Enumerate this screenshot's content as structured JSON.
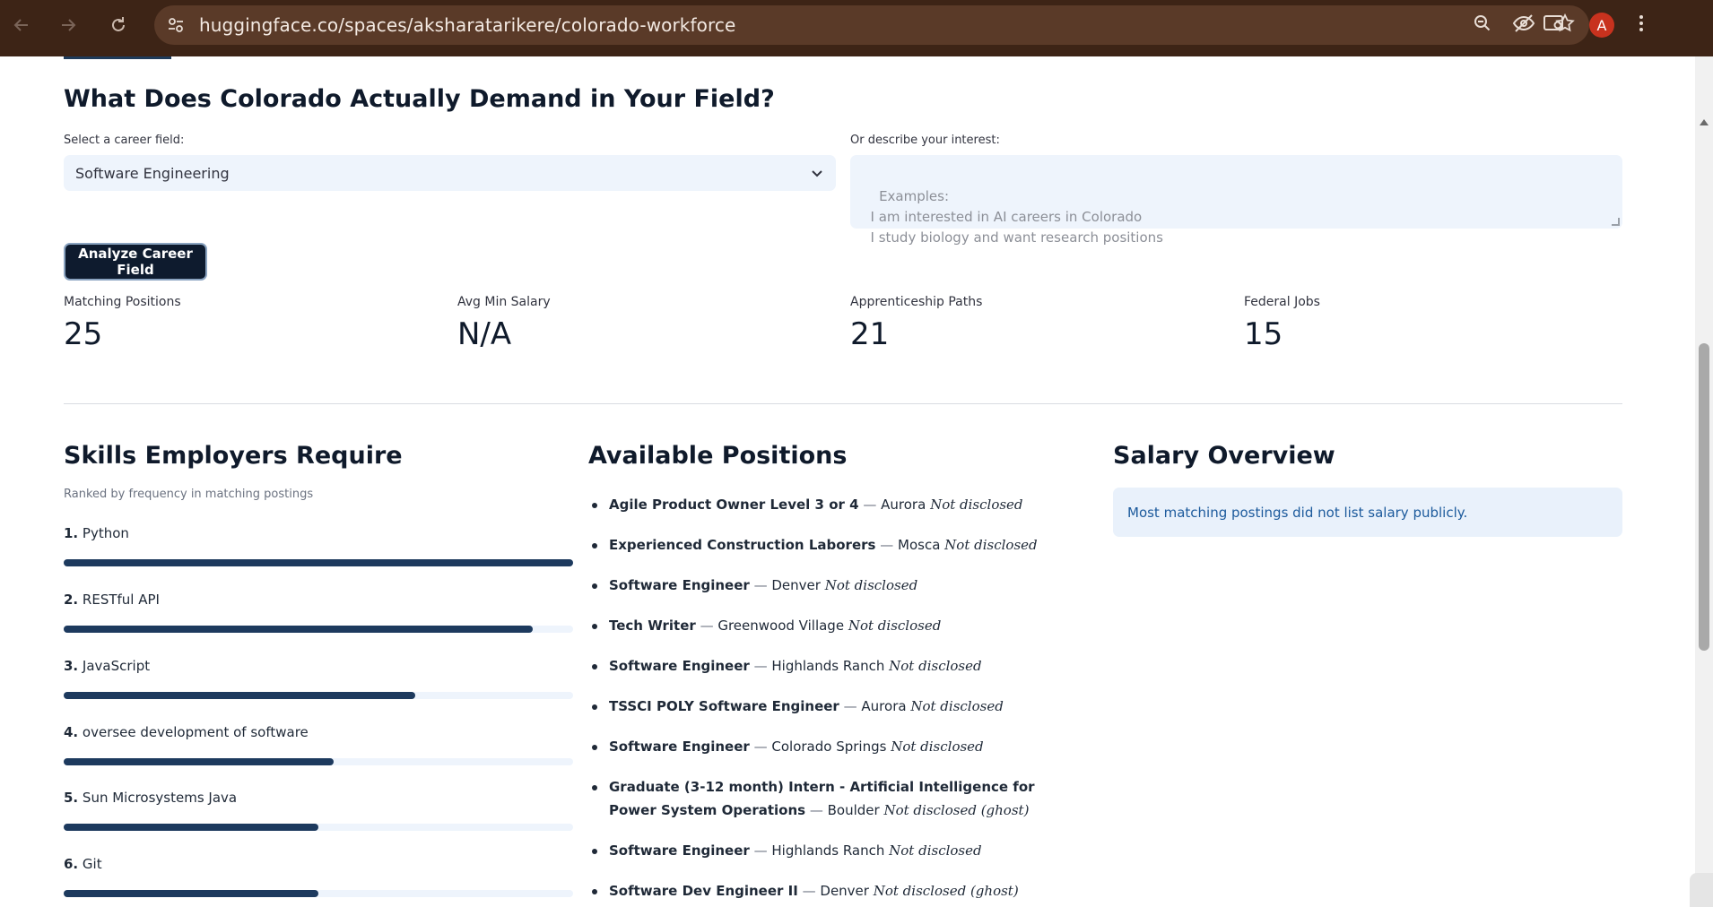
{
  "browser": {
    "url": "huggingface.co/spaces/aksharatarikere/colorado-workforce",
    "profile_initial": "A",
    "icons": [
      "back-icon",
      "forward-icon",
      "reload-icon",
      "site-settings-icon",
      "zoom-icon",
      "eye-off-icon",
      "star-icon",
      "tab-search-icon",
      "menu-icon"
    ]
  },
  "page": {
    "heading": "What Does Colorado Actually Demand in Your Field?",
    "select_label": "Select a career field:",
    "select_value": "Software Engineering",
    "textarea_label": "Or describe your interest:",
    "textarea_placeholder": "Examples:\n  I am interested in AI careers in Colorado\n  I study biology and want research positions",
    "analyze_button": "Analyze Career Field"
  },
  "metrics": [
    {
      "label": "Matching Positions",
      "value": "25"
    },
    {
      "label": "Avg Min Salary",
      "value": "N/A"
    },
    {
      "label": "Apprenticeship Paths",
      "value": "21"
    },
    {
      "label": "Federal Jobs",
      "value": "15"
    }
  ],
  "skills": {
    "title": "Skills Employers Require",
    "caption": "Ranked by frequency in matching postings",
    "items": [
      {
        "rank": "1.",
        "name": "Python",
        "level": 1.0
      },
      {
        "rank": "2.",
        "name": "RESTful API",
        "level": 0.92
      },
      {
        "rank": "3.",
        "name": "JavaScript",
        "level": 0.69
      },
      {
        "rank": "4.",
        "name": "oversee development of software",
        "level": 0.53
      },
      {
        "rank": "5.",
        "name": "Sun Microsystems Java",
        "level": 0.5
      },
      {
        "rank": "6.",
        "name": "Git",
        "level": 0.5
      }
    ]
  },
  "positions": {
    "title": "Available Positions",
    "items": [
      {
        "title": "Agile Product Owner Level 3 or 4",
        "sep": "—",
        "location": "Aurora",
        "salary": "Not disclosed"
      },
      {
        "title": "Experienced Construction Laborers",
        "sep": "—",
        "location": "Mosca",
        "salary": "Not disclosed"
      },
      {
        "title": "Software Engineer",
        "sep": "—",
        "location": "Denver",
        "salary": "Not disclosed"
      },
      {
        "title": "Tech Writer",
        "sep": "—",
        "location": "Greenwood Village",
        "salary": "Not disclosed"
      },
      {
        "title": "Software Engineer",
        "sep": "—",
        "location": "Highlands Ranch",
        "salary": "Not disclosed"
      },
      {
        "title": "TSSCI POLY Software Engineer",
        "sep": "—",
        "location": "Aurora",
        "salary": "Not disclosed"
      },
      {
        "title": "Software Engineer",
        "sep": "—",
        "location": "Colorado Springs",
        "salary": "Not disclosed"
      },
      {
        "title": "Graduate (3-12 month) Intern - Artificial Intelligence for Power System Operations",
        "sep": "—",
        "location": "Boulder",
        "salary": "Not disclosed (ghost)"
      },
      {
        "title": "Software Engineer",
        "sep": "—",
        "location": "Highlands Ranch",
        "salary": "Not disclosed"
      },
      {
        "title": "Software Dev Engineer II",
        "sep": "—",
        "location": "Denver",
        "salary": "Not disclosed (ghost)"
      }
    ]
  },
  "salary": {
    "title": "Salary Overview",
    "note": "Most matching postings did not list salary publicly."
  },
  "colors": {
    "chrome": "#3d2416",
    "accent_dark": "#0e1b2e",
    "bar": "#1d3a5e",
    "info_bg": "#e9f1fb",
    "info_text": "#1c5a9c"
  }
}
